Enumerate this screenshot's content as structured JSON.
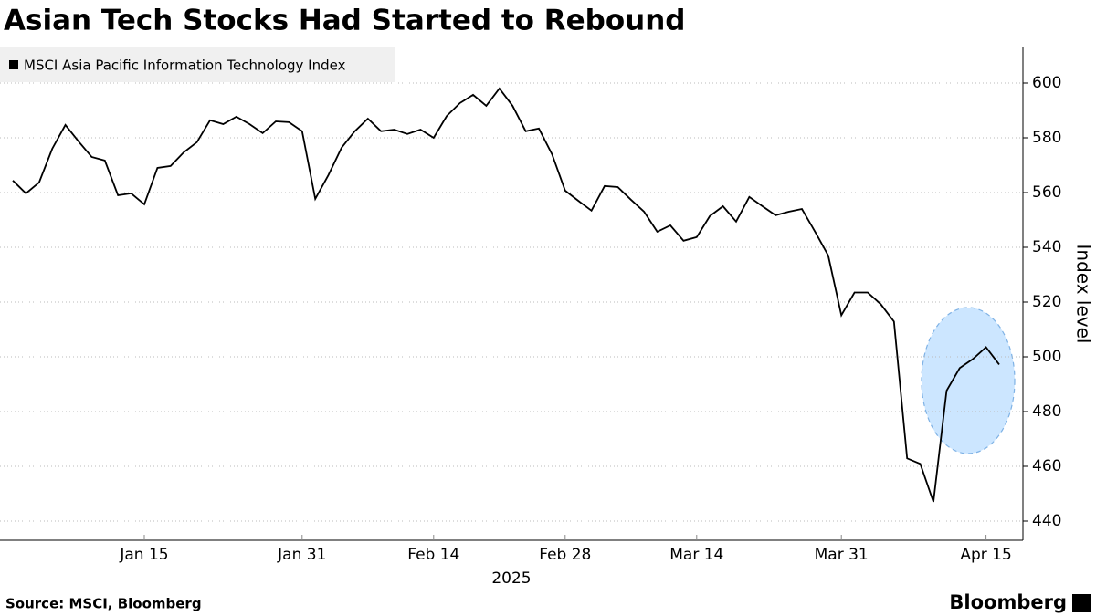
{
  "chart_data": {
    "type": "line",
    "title": "Asian Tech Stocks Had Started to Rebound",
    "source": "Source: MSCI, Bloomberg",
    "brand": "Bloomberg",
    "xlabel": "2025",
    "ylabel": "Index level",
    "x": [
      "2025-01-01",
      "2025-01-02",
      "2025-01-03",
      "2025-01-06",
      "2025-01-07",
      "2025-01-08",
      "2025-01-09",
      "2025-01-10",
      "2025-01-13",
      "2025-01-14",
      "2025-01-15",
      "2025-01-16",
      "2025-01-17",
      "2025-01-20",
      "2025-01-21",
      "2025-01-22",
      "2025-01-23",
      "2025-01-24",
      "2025-01-27",
      "2025-01-28",
      "2025-01-29",
      "2025-01-30",
      "2025-01-31",
      "2025-02-03",
      "2025-02-04",
      "2025-02-05",
      "2025-02-06",
      "2025-02-07",
      "2025-02-10",
      "2025-02-11",
      "2025-02-12",
      "2025-02-13",
      "2025-02-14",
      "2025-02-17",
      "2025-02-18",
      "2025-02-19",
      "2025-02-20",
      "2025-02-21",
      "2025-02-24",
      "2025-02-25",
      "2025-02-26",
      "2025-02-27",
      "2025-02-28",
      "2025-03-03",
      "2025-03-04",
      "2025-03-05",
      "2025-03-06",
      "2025-03-07",
      "2025-03-10",
      "2025-03-11",
      "2025-03-12",
      "2025-03-13",
      "2025-03-14",
      "2025-03-17",
      "2025-03-18",
      "2025-03-19",
      "2025-03-20",
      "2025-03-21",
      "2025-03-24",
      "2025-03-25",
      "2025-03-26",
      "2025-03-27",
      "2025-03-28",
      "2025-03-31",
      "2025-04-01",
      "2025-04-02",
      "2025-04-03",
      "2025-04-04",
      "2025-04-07",
      "2025-04-08",
      "2025-04-09",
      "2025-04-10",
      "2025-04-11",
      "2025-04-14",
      "2025-04-15",
      "2025-04-16"
    ],
    "series": [
      {
        "name": "MSCI Asia Pacific Information Technology Index",
        "color": "#000000",
        "values": [
          564.4,
          559.7,
          563.7,
          576,
          584.7,
          578.7,
          573,
          571.7,
          559,
          559.7,
          555.7,
          569,
          569.7,
          574.7,
          578.4,
          586.4,
          585,
          587.7,
          585,
          581.7,
          586,
          585.7,
          582.4,
          557.7,
          566.4,
          576.4,
          582.4,
          587,
          582.4,
          583,
          581.4,
          583,
          580,
          588,
          592.7,
          595.7,
          591.7,
          598,
          591.7,
          582.4,
          583.4,
          574,
          560.7,
          557,
          553.4,
          562.4,
          562,
          557.4,
          553,
          545.7,
          548,
          542.4,
          543.7,
          551.4,
          555,
          549.4,
          558.4,
          555,
          551.7,
          553,
          554,
          545.7,
          537,
          515.2,
          523.5,
          523.5,
          519.2,
          512.9,
          462.9,
          460.9,
          447,
          487.6,
          495.9,
          499.2,
          503.5,
          497.2
        ]
      }
    ],
    "xticks": [
      {
        "value": "2025-01-15",
        "label": "Jan 15"
      },
      {
        "value": "2025-01-31",
        "label": "Jan 31"
      },
      {
        "value": "2025-02-14",
        "label": "Feb 14"
      },
      {
        "value": "2025-02-28",
        "label": "Feb 28"
      },
      {
        "value": "2025-03-14",
        "label": "Mar 14"
      },
      {
        "value": "2025-03-31",
        "label": "Mar 31"
      },
      {
        "value": "2025-04-15",
        "label": "Apr 15"
      }
    ],
    "ylim": [
      433,
      613
    ],
    "yticks": [
      440,
      460,
      480,
      500,
      520,
      540,
      560,
      580,
      600
    ],
    "grid": true
  }
}
